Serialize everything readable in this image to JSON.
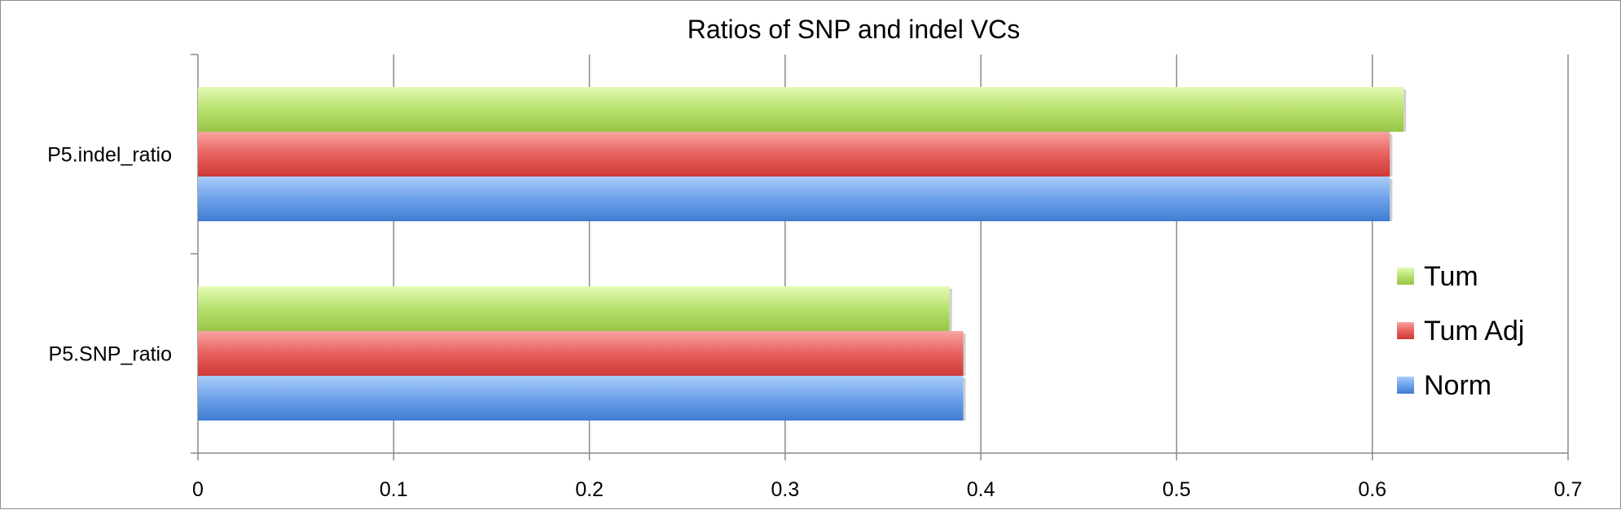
{
  "chart_data": {
    "type": "bar",
    "orientation": "horizontal",
    "title": "Ratios of SNP and indel VCs",
    "categories": [
      "P5.SNP_ratio",
      "P5.indel_ratio"
    ],
    "series": [
      {
        "name": "Norm",
        "values": [
          0.391,
          0.609
        ],
        "color": "#4a86d6"
      },
      {
        "name": "Tum Adj",
        "values": [
          0.391,
          0.609
        ],
        "color": "#d9423f"
      },
      {
        "name": "Tum",
        "values": [
          0.384,
          0.616
        ],
        "color": "#9fcd4a"
      }
    ],
    "xlim": [
      0,
      0.7
    ],
    "xticks": [
      "0",
      "0.1",
      "0.2",
      "0.3",
      "0.4",
      "0.5",
      "0.6",
      "0.7"
    ],
    "xlabel": "",
    "ylabel": "",
    "grid": "vertical",
    "legend_position": "right",
    "legend_order": [
      "Tum",
      "Tum Adj",
      "Norm"
    ]
  }
}
